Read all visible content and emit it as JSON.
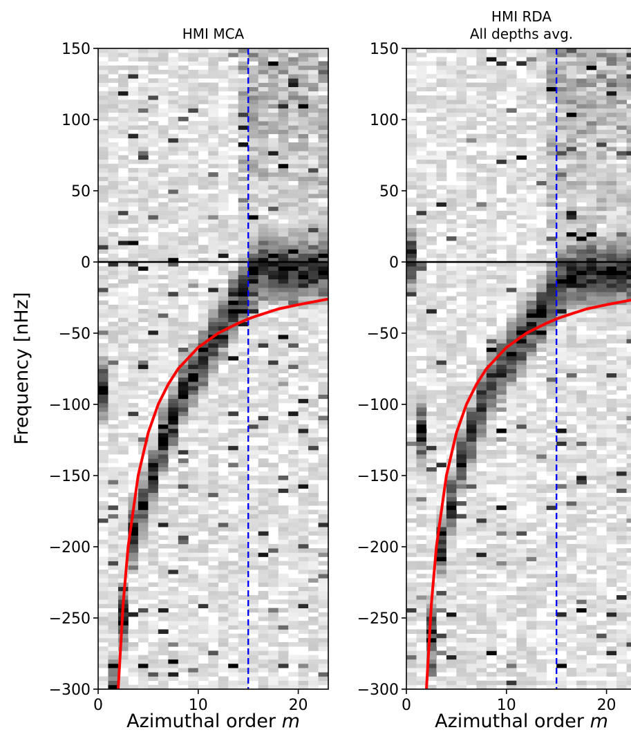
{
  "chart_data": [
    {
      "type": "heatmap",
      "title": [
        "HMI MCA"
      ],
      "xlabel": "Azimuthal order",
      "xlabel_var": "m",
      "ylabel": "Frequency [nHz]",
      "xlim": [
        0,
        23
      ],
      "ylim": [
        -300,
        150
      ],
      "xticks": [
        0,
        10,
        20
      ],
      "yticks": [
        150,
        100,
        50,
        0,
        -50,
        -100,
        -150,
        -200,
        -250,
        -300
      ],
      "colormap": "Greys",
      "reference_lines": [
        {
          "kind": "horizontal",
          "y": 0,
          "color": "#000000",
          "style": "solid"
        },
        {
          "kind": "vertical",
          "x": 15,
          "color": "#0000ff",
          "style": "dashed"
        }
      ],
      "dispersion_curve": {
        "color": "#ff0000",
        "m": [
          2,
          2.5,
          3,
          4,
          5,
          6,
          7,
          8,
          10,
          12,
          14,
          15,
          16,
          18,
          20,
          23
        ],
        "frequency_nhz": [
          -300,
          -240,
          -200,
          -150,
          -120,
          -100,
          -86,
          -75,
          -60,
          -50,
          -43,
          -40,
          -37.5,
          -33,
          -30,
          -26
        ]
      },
      "ridge": {
        "m": [
          0,
          1,
          2,
          3,
          4,
          5,
          6,
          7,
          8,
          9,
          10,
          11,
          12,
          13,
          14,
          15,
          16
        ],
        "frequency_nhz": [
          -90,
          -300,
          -250,
          -190,
          -170,
          -150,
          -125,
          -110,
          -90,
          -80,
          -70,
          -55,
          -45,
          -30,
          -20,
          -10,
          -5
        ]
      }
    },
    {
      "type": "heatmap",
      "title": [
        "HMI RDA",
        "All depths avg."
      ],
      "xlabel": "Azimuthal order",
      "xlabel_var": "m",
      "ylabel": "",
      "xlim": [
        0,
        23
      ],
      "ylim": [
        -300,
        150
      ],
      "xticks": [
        0,
        10,
        20
      ],
      "yticks": [
        150,
        100,
        50,
        0,
        -50,
        -100,
        -150,
        -200,
        -250,
        -300
      ],
      "colormap": "Greys",
      "reference_lines": [
        {
          "kind": "horizontal",
          "y": 0,
          "color": "#000000",
          "style": "solid"
        },
        {
          "kind": "vertical",
          "x": 15,
          "color": "#0000ff",
          "style": "dashed"
        }
      ],
      "dispersion_curve": {
        "color": "#ff0000",
        "m": [
          2,
          2.5,
          3,
          4,
          5,
          6,
          7,
          8,
          10,
          12,
          14,
          15,
          16,
          18,
          20,
          23
        ],
        "frequency_nhz": [
          -300,
          -240,
          -200,
          -150,
          -120,
          -100,
          -86,
          -75,
          -60,
          -50,
          -43,
          -40,
          -37.5,
          -33,
          -30,
          -26
        ]
      },
      "ridge": {
        "m": [
          0,
          1,
          2,
          3,
          4,
          5,
          6,
          7,
          8,
          9,
          10,
          11,
          12,
          13,
          14,
          15,
          16,
          17
        ],
        "frequency_nhz": [
          2,
          -120,
          -260,
          -200,
          -170,
          -140,
          -120,
          -100,
          -85,
          -75,
          -65,
          -55,
          -45,
          -35,
          -25,
          -15,
          -10,
          -8
        ]
      }
    }
  ]
}
